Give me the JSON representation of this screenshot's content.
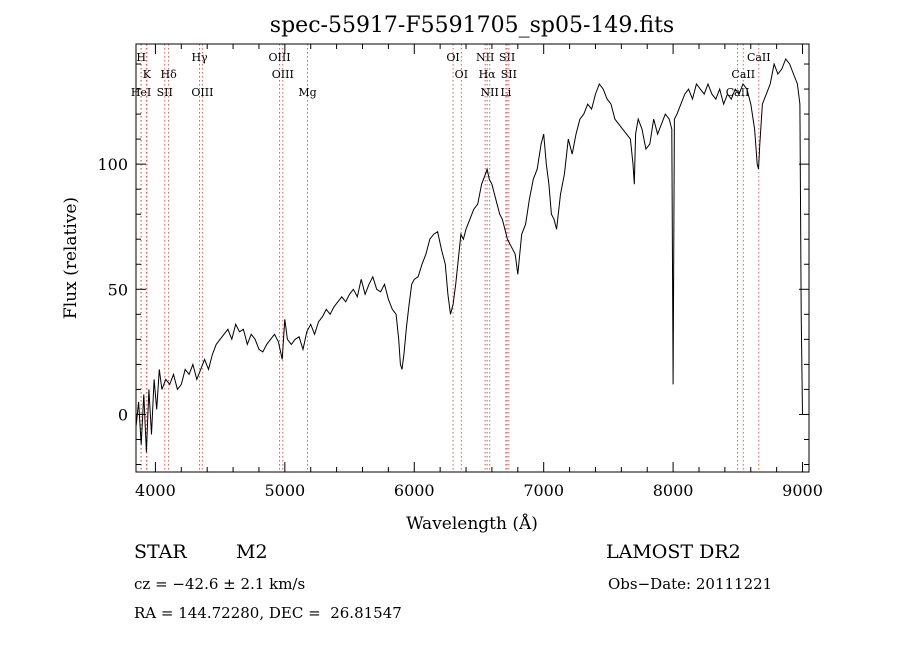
{
  "chart_data": {
    "type": "line",
    "title": "spec-55917-F5591705_sp05-149.fits",
    "xlabel": "Wavelength (Å)",
    "ylabel": "Flux (relative)",
    "xlim": [
      3850,
      9050
    ],
    "ylim": [
      -23,
      148
    ],
    "xticks": [
      4000,
      5000,
      6000,
      7000,
      8000,
      9000
    ],
    "yticks": [
      0,
      50,
      100
    ],
    "grid": false,
    "series": [
      {
        "x": [
          3850,
          3870,
          3890,
          3910,
          3930,
          3950,
          3970,
          3990,
          4010,
          4030,
          4050,
          4080,
          4110,
          4140,
          4170,
          4200,
          4230,
          4260,
          4290,
          4320,
          4350,
          4380,
          4410,
          4440,
          4470,
          4500,
          4530,
          4560,
          4590,
          4620,
          4650,
          4680,
          4710,
          4740,
          4770,
          4800,
          4830,
          4860,
          4890,
          4920,
          4950,
          4980,
          5000,
          5020,
          5050,
          5080,
          5110,
          5140,
          5170,
          5200,
          5230,
          5260,
          5290,
          5320,
          5350,
          5380,
          5410,
          5440,
          5470,
          5500,
          5530,
          5560,
          5590,
          5620,
          5650,
          5680,
          5710,
          5740,
          5770,
          5800,
          5830,
          5860,
          5880,
          5893,
          5905,
          5920,
          5940,
          5960,
          5980,
          6000,
          6030,
          6060,
          6090,
          6120,
          6150,
          6180,
          6210,
          6240,
          6260,
          6280,
          6300,
          6320,
          6340,
          6360,
          6380,
          6400,
          6430,
          6460,
          6490,
          6520,
          6550,
          6563,
          6580,
          6600,
          6620,
          6640,
          6660,
          6680,
          6700,
          6720,
          6740,
          6760,
          6780,
          6800,
          6830,
          6860,
          6890,
          6920,
          6950,
          6980,
          7000,
          7020,
          7040,
          7060,
          7080,
          7100,
          7130,
          7160,
          7190,
          7220,
          7250,
          7280,
          7310,
          7340,
          7370,
          7400,
          7430,
          7460,
          7490,
          7520,
          7550,
          7580,
          7610,
          7640,
          7670,
          7690,
          7700,
          7710,
          7730,
          7760,
          7790,
          7820,
          7850,
          7880,
          7910,
          7940,
          7970,
          7990,
          8000,
          8010,
          8030,
          8060,
          8090,
          8120,
          8150,
          8180,
          8210,
          8240,
          8270,
          8300,
          8330,
          8360,
          8390,
          8420,
          8450,
          8480,
          8510,
          8540,
          8570,
          8600,
          8630,
          8650,
          8660,
          8670,
          8690,
          8720,
          8750,
          8780,
          8810,
          8840,
          8870,
          8900,
          8930,
          8960,
          8980,
          8990,
          9000
        ],
        "y": [
          -5,
          5,
          -12,
          8,
          -15,
          10,
          -8,
          14,
          2,
          18,
          10,
          14,
          12,
          16,
          10,
          12,
          18,
          16,
          20,
          14,
          18,
          22,
          18,
          24,
          28,
          30,
          32,
          34,
          30,
          36,
          33,
          34,
          28,
          32,
          30,
          26,
          25,
          28,
          30,
          32,
          29,
          22,
          38,
          30,
          28,
          30,
          31,
          26,
          33,
          36,
          32,
          37,
          39,
          42,
          40,
          43,
          45,
          47,
          45,
          48,
          50,
          47,
          54,
          48,
          52,
          55,
          50,
          49,
          52,
          46,
          42,
          40,
          30,
          20,
          18,
          24,
          35,
          44,
          52,
          54,
          55,
          60,
          64,
          70,
          72,
          73,
          66,
          60,
          48,
          40,
          44,
          52,
          62,
          72,
          70,
          74,
          78,
          82,
          84,
          92,
          96,
          98,
          94,
          92,
          88,
          84,
          80,
          78,
          74,
          70,
          68,
          66,
          64,
          56,
          72,
          76,
          86,
          94,
          98,
          108,
          112,
          100,
          92,
          80,
          78,
          74,
          88,
          96,
          110,
          104,
          112,
          118,
          120,
          124,
          122,
          128,
          132,
          130,
          126,
          124,
          118,
          116,
          114,
          112,
          110,
          100,
          92,
          112,
          118,
          114,
          106,
          108,
          118,
          112,
          116,
          120,
          118,
          114,
          12,
          118,
          120,
          124,
          128,
          130,
          126,
          132,
          130,
          128,
          132,
          128,
          126,
          130,
          124,
          128,
          126,
          130,
          128,
          132,
          130,
          124,
          114,
          100,
          98,
          108,
          124,
          128,
          132,
          140,
          136,
          138,
          142,
          140,
          136,
          132,
          124,
          40,
          0
        ]
      }
    ],
    "spectral_lines": [
      {
        "x": 3890,
        "label": "H",
        "row": 0
      },
      {
        "x": 3934,
        "label": "K",
        "row": 1
      },
      {
        "x": 3889,
        "label": "HeI",
        "row": 2
      },
      {
        "x": 3930,
        "label": "",
        "row": 2
      },
      {
        "x": 4102,
        "label": "Hδ",
        "row": 1
      },
      {
        "x": 4072,
        "label": "SII",
        "row": 2
      },
      {
        "x": 4341,
        "label": "Hγ",
        "row": 0
      },
      {
        "x": 4363,
        "label": "OIII",
        "row": 2
      },
      {
        "x": 4959,
        "label": "OIII",
        "row": 0
      },
      {
        "x": 4984,
        "label": "OIII",
        "row": 1
      },
      {
        "x": 5175,
        "label": "Mg",
        "row": 2
      },
      {
        "x": 6300,
        "label": "OI",
        "row": 0
      },
      {
        "x": 6364,
        "label": "OI",
        "row": 1
      },
      {
        "x": 6548,
        "label": "NII",
        "row": 0
      },
      {
        "x": 6563,
        "label": "Hα",
        "row": 1
      },
      {
        "x": 6583,
        "label": "NII",
        "row": 2
      },
      {
        "x": 6717,
        "label": "SII",
        "row": 0
      },
      {
        "x": 6731,
        "label": "SII",
        "row": 1
      },
      {
        "x": 6708,
        "label": "Li",
        "row": 2
      },
      {
        "x": 8498,
        "label": "CaII",
        "row": 2
      },
      {
        "x": 8542,
        "label": "CaII",
        "row": 1
      },
      {
        "x": 8662,
        "label": "CaII",
        "row": 0
      }
    ]
  },
  "info": {
    "class": "STAR",
    "subclass": "M2",
    "survey": "LAMOST DR2",
    "cz": "cz = −42.6 ± 2.1 km/s",
    "obs_date": "Obs−Date: 20111221",
    "coords": "RA = 144.72280, DEC =  26.81547"
  }
}
